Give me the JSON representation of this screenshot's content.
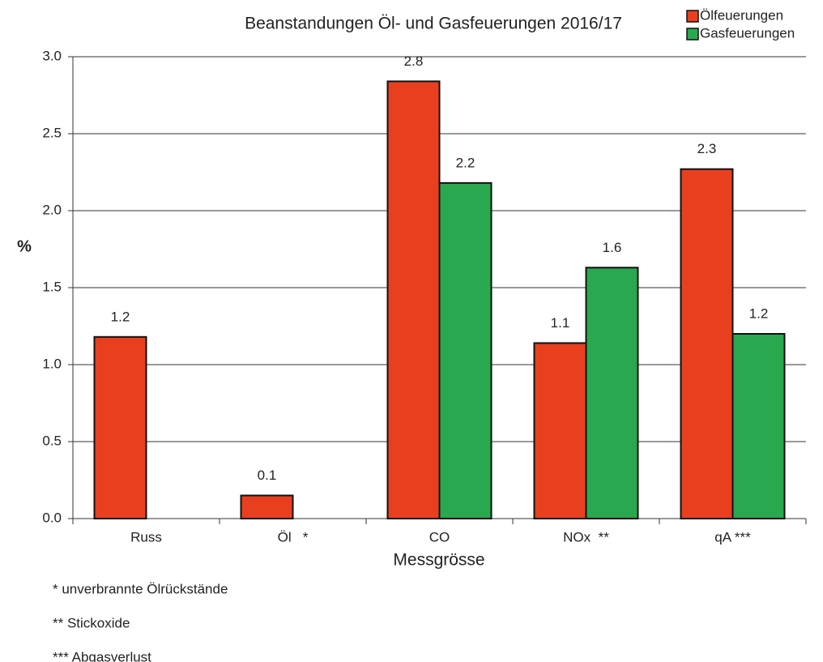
{
  "chart_data": {
    "type": "bar",
    "title": "Beanstandungen Öl- und Gasfeuerungen 2016/17",
    "x_label": "Messgrösse",
    "y_label": "%",
    "categories": [
      "Russ",
      "Öl   *",
      "CO",
      "NOx  **",
      "qA ***"
    ],
    "series": [
      {
        "name": "Ölfeuerungen",
        "color": "#e8401f",
        "values": [
          1.18,
          0.15,
          2.84,
          1.14,
          2.27
        ],
        "value_labels": [
          "1.2",
          "0.1",
          "2.8",
          "1.1",
          "2.3"
        ]
      },
      {
        "name": "Gasfeuerungen",
        "color": "#2aa84f",
        "values": [
          null,
          null,
          2.18,
          1.63,
          1.2
        ],
        "value_labels": [
          null,
          null,
          "2.2",
          "1.6",
          "1.2"
        ]
      }
    ],
    "ylim": [
      0,
      3
    ],
    "yticks": [
      {
        "value": 0,
        "label": "0.0"
      },
      {
        "value": 0.5,
        "label": "0.5"
      },
      {
        "value": 1,
        "label": "1.0"
      },
      {
        "value": 1.5,
        "label": "1.5"
      },
      {
        "value": 2,
        "label": "2.0"
      },
      {
        "value": 2.5,
        "label": "2.5"
      },
      {
        "value": 3,
        "label": "3.0"
      }
    ],
    "grid": true,
    "legend": "top-right",
    "footnotes": [
      "* unverbrannte Ölrückstände",
      "** Stickoxide",
      "*** Abgasverlust"
    ]
  }
}
